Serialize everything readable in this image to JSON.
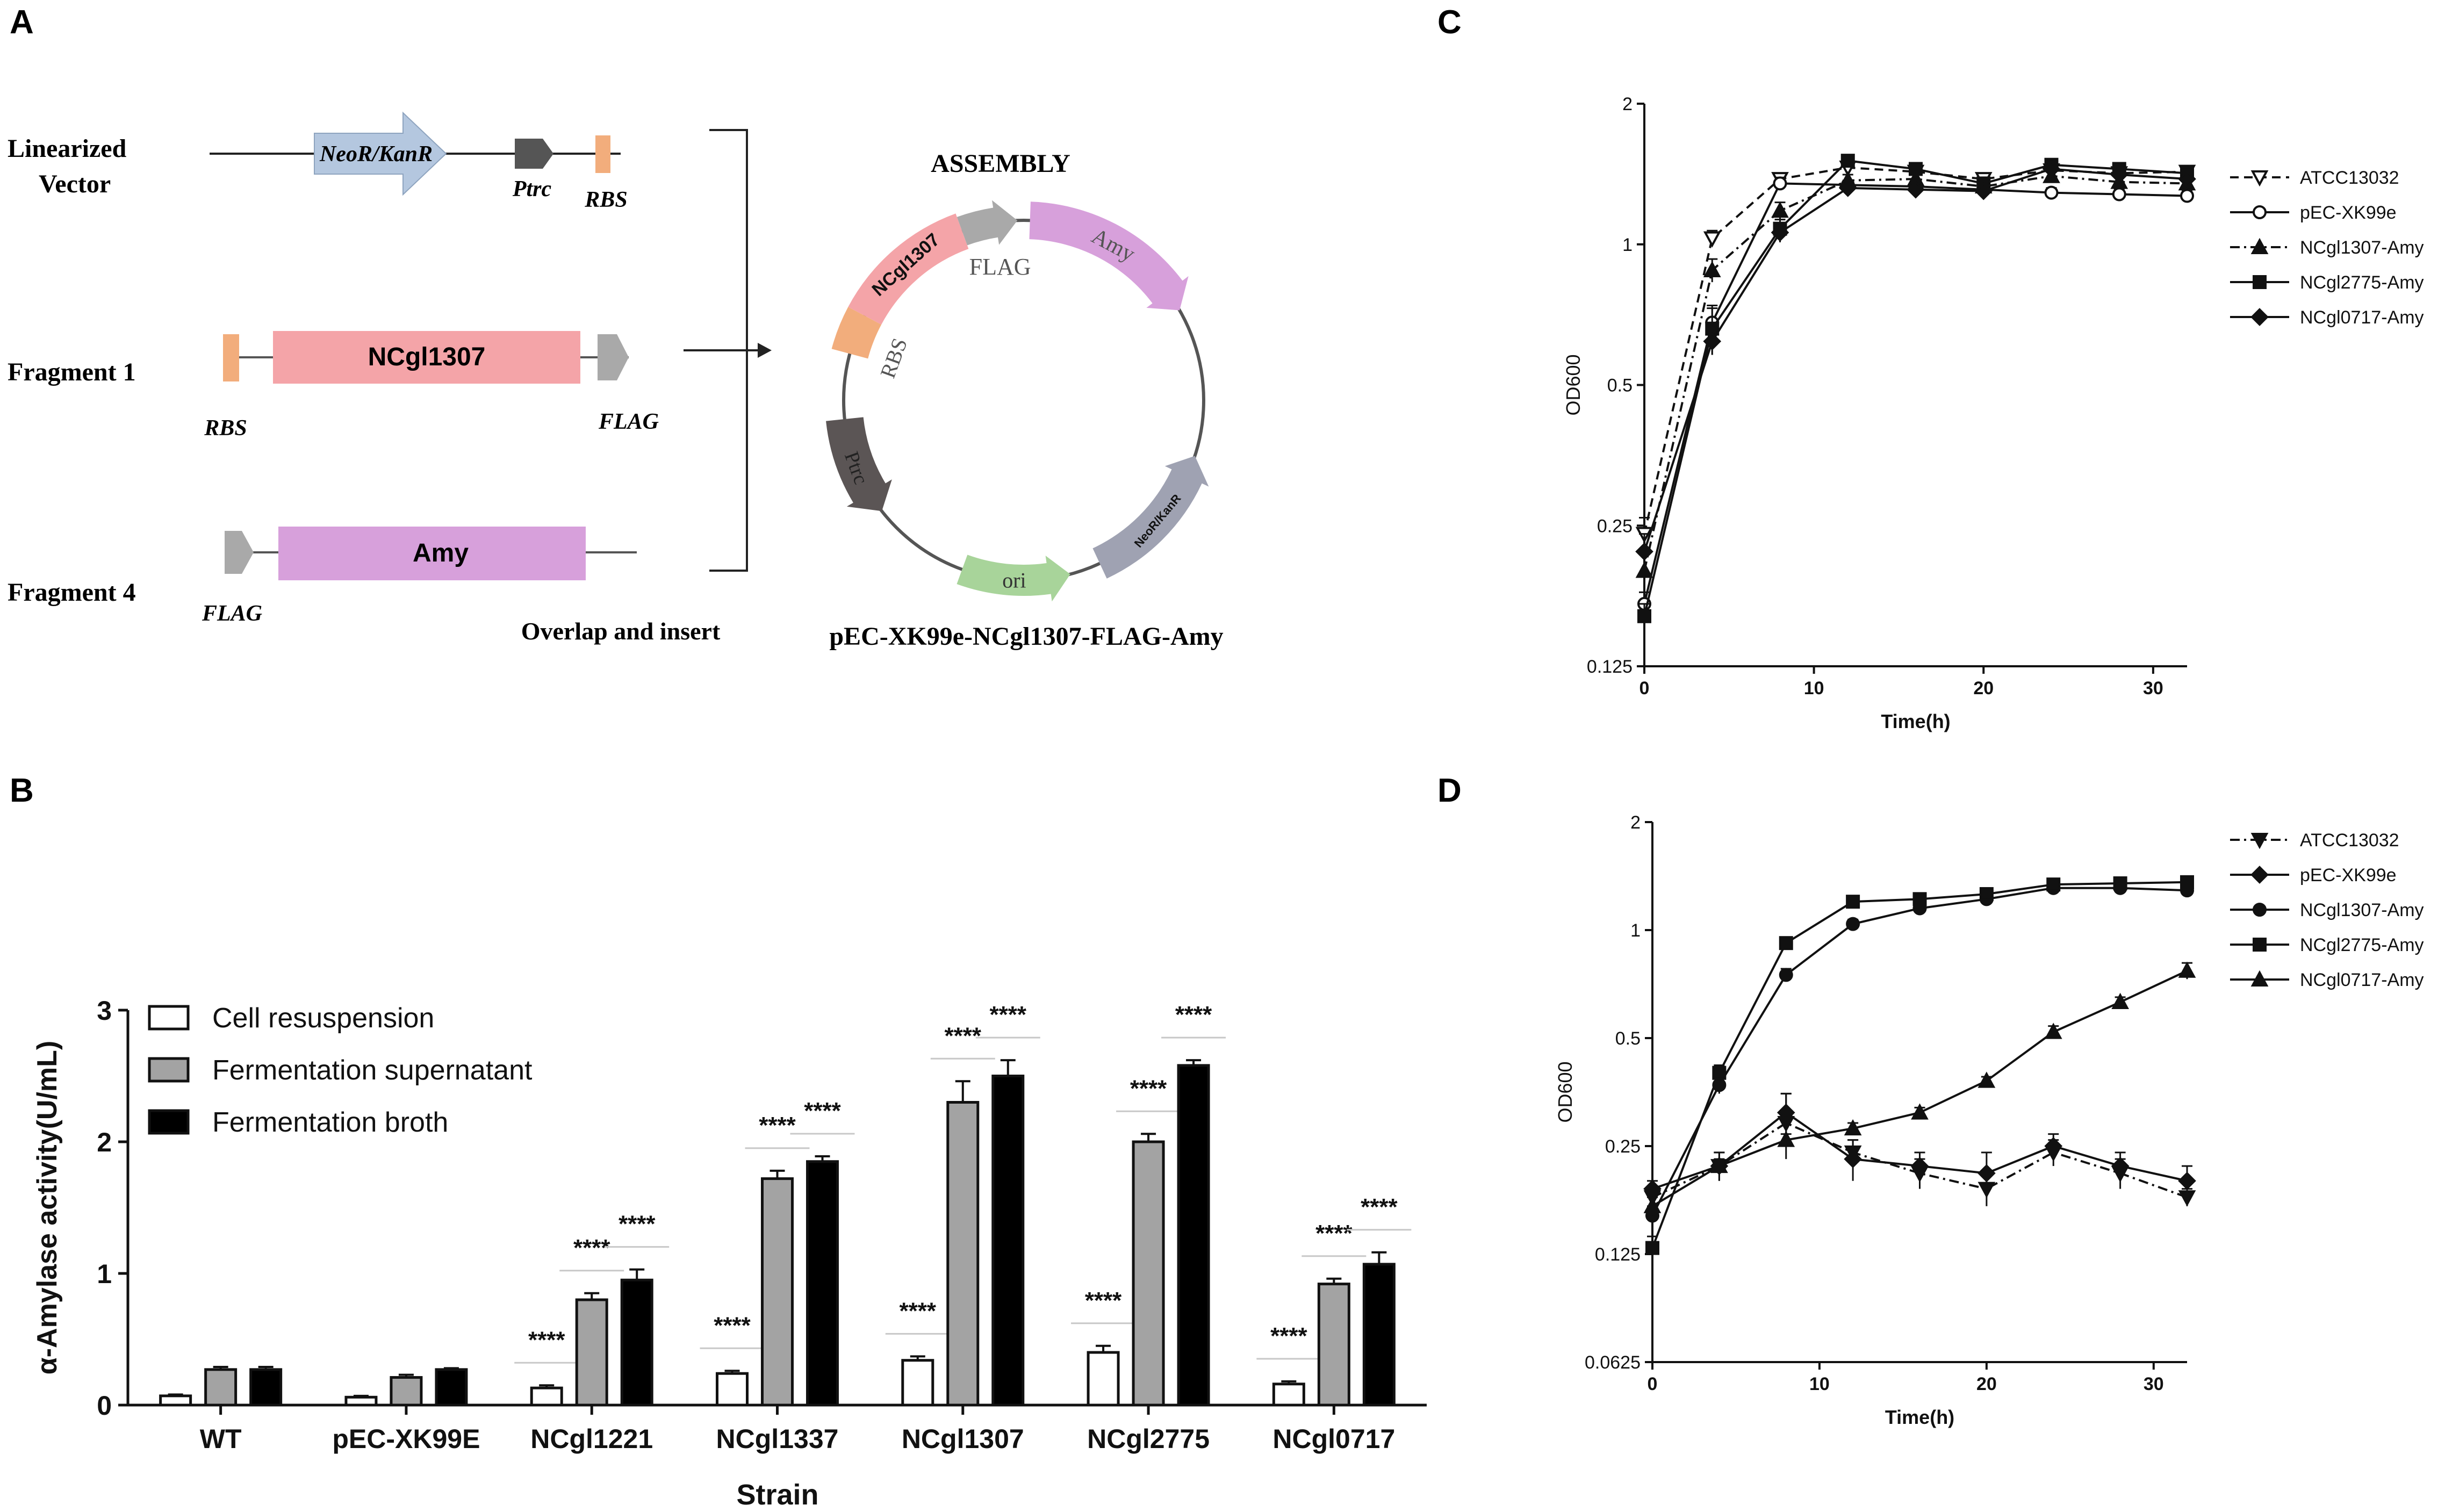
{
  "colors": {
    "neo": "#b4c7df",
    "ptrc": "#555555",
    "rbs": "#f2ad7c",
    "ncgl": "#f4a4a8",
    "flag": "#a9a9a9",
    "amy": "#d7a0db",
    "ori": "#a8d49a",
    "neo_plasmid": "#9fa2b2",
    "ptrc_plasmid": "#5b5555",
    "bar_gray": "#a3a3a3",
    "bar_black": "#000000"
  },
  "panel_a": {
    "letter": "A",
    "vector_label_1": "Linearized",
    "vector_label_2": "Vector",
    "neo_label": "NeoR/KanR",
    "ptrc_label": "Ptrc",
    "rbs_label": "RBS",
    "frag1_label": "Fragment 1",
    "frag1_gene": "NCgl1307",
    "frag1_rbs": "RBS",
    "frag1_flag": "FLAG",
    "frag4_label": "Fragment 4",
    "frag4_gene": "Amy",
    "frag4_flag": "FLAG",
    "overlap_label": "Overlap and insert",
    "assembly_label": "ASSEMBLY",
    "plasmid_ncgl": "NCgl1307",
    "plasmid_flag": "FLAG",
    "plasmid_amy": "Amy",
    "plasmid_rbs": "RBS",
    "plasmid_ptrc": "Ptrc",
    "plasmid_neo": "NeoR/KanR",
    "plasmid_ori": "ori",
    "plasmid_name": "pEC-XK99e-NCgl1307-FLAG-Amy"
  },
  "chart_data": [
    {
      "panel": "B",
      "type": "bar",
      "title": "",
      "xlabel": "Strain",
      "ylabel": "α-Amylase activity(U/mL)",
      "ylim": [
        0,
        3
      ],
      "yticks": [
        0,
        1,
        2,
        3
      ],
      "categories": [
        "WT",
        "pEC-XK99E",
        "NCgl1221",
        "NCgl1337",
        "NCgl1307",
        "NCgl2775",
        "NCgl0717"
      ],
      "series": [
        {
          "name": "Cell resuspension",
          "color": "#ffffff",
          "values": [
            0.07,
            0.06,
            0.13,
            0.24,
            0.34,
            0.4,
            0.16
          ],
          "errors": [
            0.01,
            0.01,
            0.02,
            0.02,
            0.03,
            0.05,
            0.02
          ]
        },
        {
          "name": "Fermentation supernatant",
          "color": "#a3a3a3",
          "values": [
            0.27,
            0.21,
            0.8,
            1.72,
            2.3,
            2.0,
            0.92
          ],
          "errors": [
            0.02,
            0.02,
            0.05,
            0.06,
            0.16,
            0.06,
            0.04
          ]
        },
        {
          "name": "Fermentation broth",
          "color": "#000000",
          "values": [
            0.27,
            0.27,
            0.95,
            1.85,
            2.5,
            2.58,
            1.07
          ],
          "errors": [
            0.02,
            0.01,
            0.08,
            0.04,
            0.12,
            0.04,
            0.09
          ]
        }
      ],
      "significance": [
        [
          "",
          "",
          "****",
          "****",
          "****",
          "****",
          "****"
        ],
        [
          "",
          "",
          "****",
          "****",
          "****",
          "****",
          "****"
        ],
        [
          "",
          "",
          "****",
          "****",
          "****",
          "****",
          "****"
        ]
      ],
      "legend": "top-left"
    },
    {
      "panel": "C",
      "type": "line",
      "title": "",
      "xlabel": "Time(h)",
      "ylabel": "OD600",
      "yscale": "log2",
      "ylim": [
        0.125,
        2
      ],
      "yticks": [
        0.125,
        0.25,
        0.5,
        1,
        2
      ],
      "ytick_labels": [
        "0.125",
        "0.25",
        "0.5",
        "1",
        "2"
      ],
      "xlim": [
        0,
        32
      ],
      "xticks": [
        0,
        10,
        20,
        30
      ],
      "x": [
        0,
        4,
        8,
        12,
        16,
        20,
        24,
        28,
        32
      ],
      "series": [
        {
          "name": "ATCC13032",
          "marker": "triangle-down-open",
          "dash": "dash",
          "values": [
            0.24,
            1.03,
            1.38,
            1.46,
            1.43,
            1.38,
            1.44,
            1.42,
            1.43
          ],
          "errors": [
            0.02,
            0.04,
            0.04,
            0.03,
            0.04,
            0.04,
            0.04,
            0.04,
            0.04
          ]
        },
        {
          "name": "pEC-XK99e",
          "marker": "circle-open",
          "dash": "solid",
          "values": [
            0.17,
            0.68,
            1.35,
            1.34,
            1.33,
            1.31,
            1.29,
            1.28,
            1.27
          ],
          "errors": [
            0.01,
            0.05,
            0.04,
            0.03,
            0.03,
            0.03,
            0.03,
            0.03,
            0.03
          ]
        },
        {
          "name": "NCgl1307-Amy",
          "marker": "triangle-up",
          "dash": "dashdot",
          "values": [
            0.2,
            0.88,
            1.18,
            1.37,
            1.38,
            1.33,
            1.4,
            1.36,
            1.35
          ],
          "errors": [
            0.02,
            0.05,
            0.05,
            0.04,
            0.04,
            0.05,
            0.04,
            0.04,
            0.04
          ]
        },
        {
          "name": "NCgl2775-Amy",
          "marker": "square",
          "dash": "solid",
          "values": [
            0.16,
            0.66,
            1.08,
            1.51,
            1.45,
            1.35,
            1.48,
            1.45,
            1.42
          ],
          "errors": [
            0.01,
            0.08,
            0.05,
            0.03,
            0.03,
            0.04,
            0.03,
            0.03,
            0.03
          ]
        },
        {
          "name": "NCgl0717-Amy",
          "marker": "diamond",
          "dash": "solid",
          "values": [
            0.22,
            0.62,
            1.06,
            1.32,
            1.31,
            1.3,
            1.45,
            1.41,
            1.38
          ],
          "errors": [
            0.02,
            0.04,
            0.05,
            0.03,
            0.03,
            0.03,
            0.03,
            0.03,
            0.03
          ]
        }
      ],
      "legend": "right"
    },
    {
      "panel": "D",
      "type": "line",
      "title": "",
      "xlabel": "Time(h)",
      "ylabel": "OD600",
      "yscale": "log2",
      "ylim": [
        0.0625,
        2
      ],
      "yticks": [
        0.0625,
        0.125,
        0.25,
        0.5,
        1,
        2
      ],
      "ytick_labels": [
        "0.0625",
        "0.125",
        "0.25",
        "0.5",
        "1",
        "2"
      ],
      "xlim": [
        0,
        32
      ],
      "xticks": [
        0,
        10,
        20,
        30
      ],
      "x": [
        0,
        4,
        8,
        12,
        16,
        20,
        24,
        28,
        32
      ],
      "series": [
        {
          "name": "ATCC13032",
          "marker": "triangle-down",
          "dash": "dashdot",
          "values": [
            0.18,
            0.22,
            0.29,
            0.24,
            0.21,
            0.19,
            0.24,
            0.21,
            0.18
          ],
          "errors": [
            0.01,
            0.02,
            0.06,
            0.02,
            0.02,
            0.02,
            0.02,
            0.02,
            0.01
          ]
        },
        {
          "name": "pEC-XK99e",
          "marker": "diamond",
          "dash": "solid",
          "values": [
            0.19,
            0.22,
            0.31,
            0.23,
            0.22,
            0.21,
            0.25,
            0.22,
            0.2
          ],
          "errors": [
            0.01,
            0.02,
            0.04,
            0.03,
            0.02,
            0.03,
            0.02,
            0.02,
            0.02
          ]
        },
        {
          "name": "NCgl1307-Amy",
          "marker": "circle",
          "dash": "solid",
          "values": [
            0.16,
            0.37,
            0.75,
            1.04,
            1.15,
            1.22,
            1.31,
            1.31,
            1.29
          ],
          "errors": [
            0.01,
            0.02,
            0.03,
            0.03,
            0.03,
            0.03,
            0.03,
            0.03,
            0.03
          ]
        },
        {
          "name": "NCgl2775-Amy",
          "marker": "square",
          "dash": "solid",
          "values": [
            0.13,
            0.4,
            0.92,
            1.2,
            1.22,
            1.26,
            1.34,
            1.35,
            1.36
          ],
          "errors": [
            0.01,
            0.02,
            0.03,
            0.03,
            0.03,
            0.03,
            0.03,
            0.03,
            0.03
          ]
        },
        {
          "name": "NCgl0717-Amy",
          "marker": "triangle-up",
          "dash": "solid",
          "values": [
            0.17,
            0.22,
            0.26,
            0.28,
            0.31,
            0.38,
            0.52,
            0.63,
            0.77
          ],
          "errors": [
            0.01,
            0.01,
            0.01,
            0.01,
            0.01,
            0.01,
            0.02,
            0.02,
            0.04
          ]
        }
      ],
      "legend": "right"
    }
  ]
}
